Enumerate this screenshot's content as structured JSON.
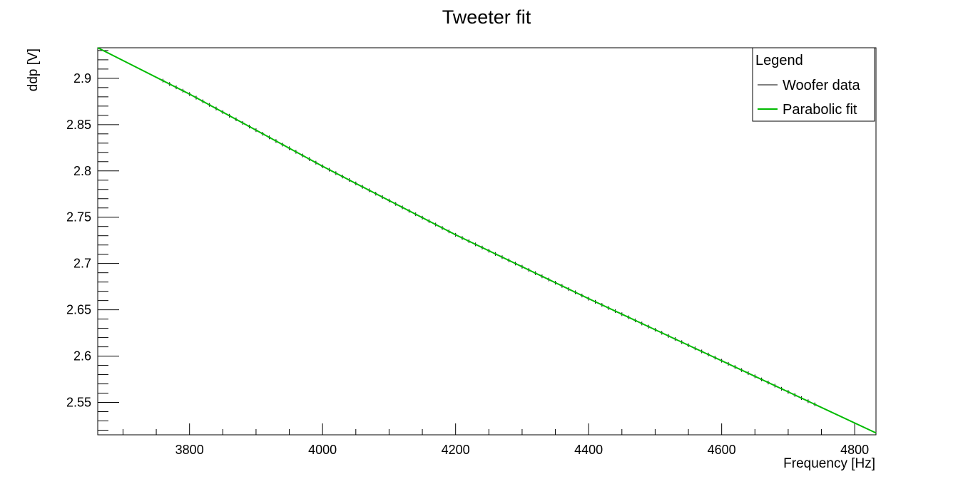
{
  "chart_data": {
    "type": "line",
    "title": "Tweeter fit",
    "xlabel": "Frequency [Hz]",
    "ylabel": "ddp [V]",
    "xlim": [
      3662,
      4832
    ],
    "ylim": [
      2.515,
      2.933
    ],
    "x_ticks": [
      3800,
      4000,
      4200,
      4400,
      4600,
      4800
    ],
    "x_tick_labels": [
      "3800",
      "4000",
      "4200",
      "4400",
      "4600",
      "4800"
    ],
    "y_ticks": [
      2.55,
      2.6,
      2.65,
      2.7,
      2.75,
      2.8,
      2.85,
      2.9
    ],
    "y_tick_labels": [
      "2.55",
      "2.6",
      "2.65",
      "2.7",
      "2.75",
      "2.8",
      "2.85",
      "2.9"
    ],
    "grid": false,
    "legend": {
      "title": "Legend",
      "position": "top-right",
      "entries": [
        "Woofer data",
        "Parabolic fit"
      ]
    },
    "series": [
      {
        "name": "Woofer data",
        "kind": "points-with-error-bars",
        "color": "#000000",
        "x_range": [
          3760,
          4740
        ],
        "step": 10,
        "y_error": 0.002
      },
      {
        "name": "Parabolic fit",
        "kind": "curve",
        "color": "#00bb00",
        "x": [
          3662,
          3800,
          4000,
          4200,
          4400,
          4600,
          4832
        ],
        "y": [
          2.933,
          2.883,
          2.805,
          2.731,
          2.662,
          2.595,
          2.517
        ]
      }
    ]
  },
  "colors": {
    "fit": "#00bb00",
    "data": "#000000",
    "frame": "#000000"
  }
}
